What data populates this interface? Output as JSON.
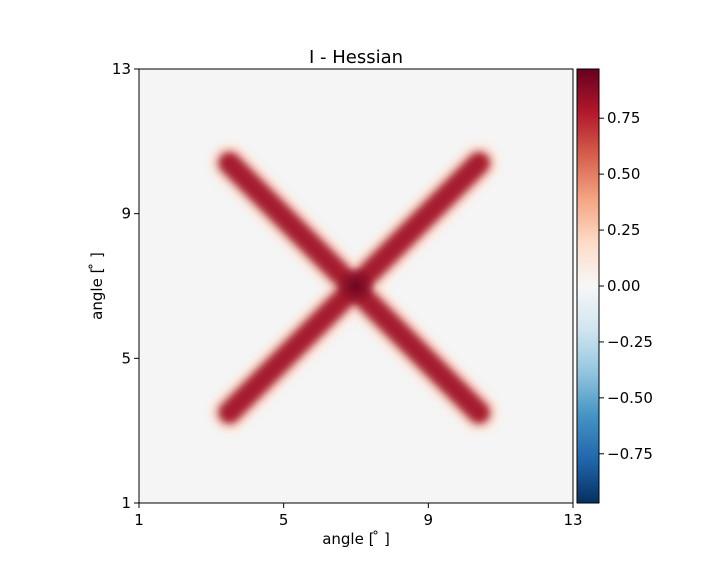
{
  "chart_data": {
    "type": "heatmap",
    "title": "I - Hessian",
    "xlabel": "angle [$^\\circ$]",
    "ylabel": "angle [$^\\circ$]",
    "xlabel_display": "angle [ ̊ ]",
    "ylabel_display": "angle [ ̊ ]",
    "xlim": [
      1,
      13
    ],
    "ylim": [
      1,
      13
    ],
    "xticks": [
      1,
      5,
      9,
      13
    ],
    "yticks": [
      1,
      5,
      9,
      13
    ],
    "colormap": "RdBu_r",
    "colorbar": {
      "range": [
        -0.97,
        0.97
      ],
      "ticks": [
        -0.75,
        -0.5,
        -0.25,
        0.0,
        0.25,
        0.5,
        0.75
      ],
      "tick_labels": [
        "−0.75",
        "−0.50",
        "−0.25",
        "0.00",
        "0.25",
        "0.50",
        "0.75"
      ]
    },
    "background_value": 0.0,
    "pattern": {
      "shape": "X",
      "lines": [
        {
          "from": [
            3.5,
            3.5
          ],
          "to": [
            10.4,
            10.4
          ]
        },
        {
          "from": [
            3.5,
            10.4
          ],
          "to": [
            10.4,
            3.5
          ]
        }
      ],
      "line_value": 0.9,
      "center": [
        7.0,
        7.0
      ],
      "center_value": 0.97
    },
    "grid": false
  },
  "colors": {
    "background": "#f5f5f5",
    "line": "#a51b2d",
    "center": "#7d0b24",
    "halo": "#fce2d3"
  }
}
